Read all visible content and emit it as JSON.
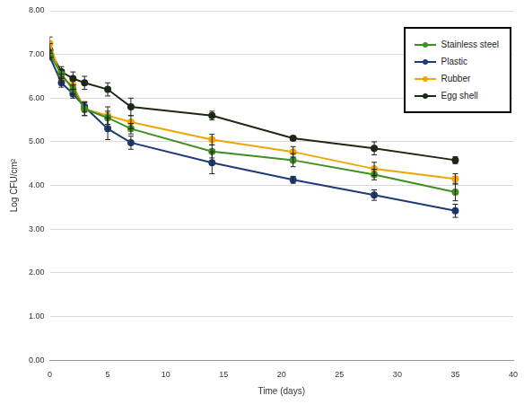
{
  "chart_data": {
    "type": "line",
    "x_label": "Time (days)",
    "y_label": "Log CFU/cm²",
    "x": [
      0,
      1,
      2,
      3,
      5,
      7,
      14,
      21,
      28,
      35
    ],
    "series": [
      {
        "name": "Stainless steel",
        "color": "#3f8f22",
        "values": [
          7.0,
          6.55,
          6.2,
          5.75,
          5.55,
          5.3,
          4.78,
          4.58,
          4.25,
          3.85
        ],
        "errors": [
          0.08,
          0.1,
          0.1,
          0.15,
          0.15,
          0.12,
          0.15,
          0.15,
          0.12,
          0.2
        ]
      },
      {
        "name": "Plastic",
        "color": "#1f3a7a",
        "values": [
          6.95,
          6.35,
          6.1,
          5.8,
          5.3,
          4.98,
          4.52,
          4.13,
          3.78,
          3.42
        ],
        "errors": [
          0.08,
          0.1,
          0.1,
          0.12,
          0.25,
          0.15,
          0.25,
          0.08,
          0.12,
          0.15
        ]
      },
      {
        "name": "Rubber",
        "color": "#f0a500",
        "values": [
          7.25,
          6.45,
          6.3,
          5.75,
          5.6,
          5.45,
          5.05,
          4.77,
          4.38,
          4.15
        ],
        "errors": [
          0.15,
          0.1,
          0.1,
          0.15,
          0.2,
          0.15,
          0.12,
          0.12,
          0.15,
          0.12
        ]
      },
      {
        "name": "Egg shell",
        "color": "#1c2a12",
        "values": [
          7.1,
          6.6,
          6.45,
          6.35,
          6.2,
          5.8,
          5.6,
          5.08,
          4.85,
          4.58
        ],
        "errors": [
          0.15,
          0.12,
          0.15,
          0.15,
          0.15,
          0.2,
          0.1,
          0.05,
          0.15,
          0.08
        ]
      }
    ],
    "xlim": [
      0,
      40
    ],
    "xticks": [
      0,
      5,
      10,
      15,
      20,
      25,
      30,
      35,
      40
    ],
    "ylim": [
      0,
      8
    ],
    "yticks": [
      {
        "value": 0,
        "label": "0.00"
      },
      {
        "value": 1,
        "label": "1.00"
      },
      {
        "value": 2,
        "label": "2.00"
      },
      {
        "value": 3,
        "label": "3.00"
      },
      {
        "value": 4,
        "label": "4.00"
      },
      {
        "value": 5,
        "label": "5.00"
      },
      {
        "value": 6,
        "label": "6.00"
      },
      {
        "value": 7,
        "label": "7.00"
      },
      {
        "value": 8,
        "label": "8.00"
      }
    ],
    "grid": true,
    "legend": "top-right",
    "marker": "circle"
  }
}
